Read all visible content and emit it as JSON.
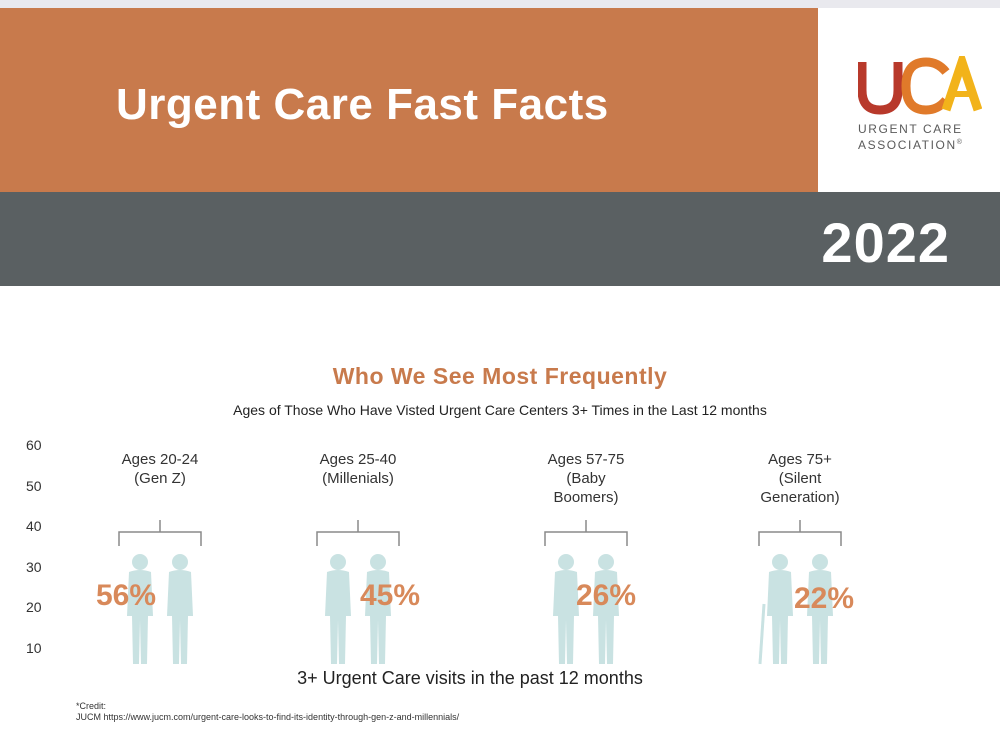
{
  "header": {
    "title": "Urgent Care Fast Facts",
    "year": "2022",
    "logo": {
      "letters": "UCA",
      "line1": "URGENT CARE",
      "line2": "ASSOCIATION",
      "mark": "®",
      "colors": {
        "u": "#b8392b",
        "c": "#e07a2a",
        "a": "#f2b31a"
      }
    }
  },
  "colors": {
    "banner": "#c87a4c",
    "band": "#5a6062",
    "accent": "#d8895a",
    "figure": "#c9e2e2"
  },
  "chart_data": {
    "type": "bar",
    "title": "Who We See Most Frequently",
    "subtitle": "Ages of Those Who Have Visted Urgent Care Centers 3+ Times in the Last 12 months",
    "xlabel": "3+ Urgent Care visits in the past 12 months",
    "ylabel": "",
    "yticks": [
      60,
      50,
      40,
      30,
      20,
      10
    ],
    "ylim": [
      10,
      60
    ],
    "categories": [
      "Ages 20-24\n(Gen Z)",
      "Ages 25-40\n(Millenials)",
      "Ages 57-75\n(Baby\nBoomers)",
      "Ages 75+\n(Silent\nGeneration)"
    ],
    "values": [
      56,
      45,
      26,
      22
    ],
    "value_labels": [
      "56%",
      "45%",
      "26%",
      "22%"
    ],
    "icon": "couple-silhouette-icon"
  },
  "credit": {
    "line1": "*Credit:",
    "line2": "JUCM https://www.jucm.com/urgent-care-looks-to-find-its-identity-through-gen-z-and-millennials/"
  }
}
